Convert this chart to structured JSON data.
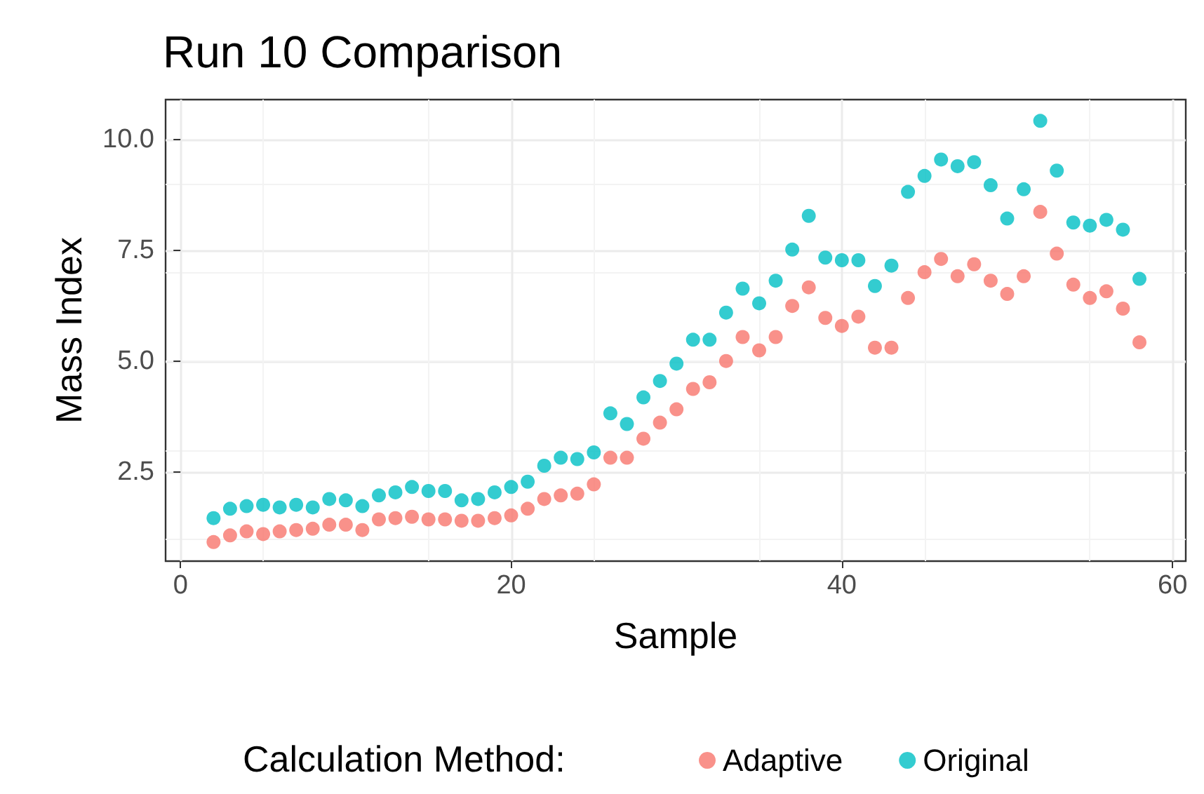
{
  "chart_data": {
    "type": "scatter",
    "title": "Run 10 Comparison",
    "xlabel": "Sample",
    "ylabel": "Mass Index",
    "legend_title": "Calculation Method:",
    "x": [
      2,
      3,
      4,
      5,
      6,
      7,
      8,
      9,
      10,
      11,
      12,
      13,
      14,
      15,
      16,
      17,
      18,
      19,
      20,
      21,
      22,
      23,
      24,
      25,
      26,
      27,
      28,
      29,
      30,
      31,
      32,
      33,
      34,
      35,
      36,
      37,
      38,
      39,
      40,
      41,
      42,
      43,
      44,
      45,
      46,
      47,
      48,
      49,
      50,
      51,
      52,
      53,
      54,
      55,
      56,
      57,
      58
    ],
    "series": [
      {
        "name": "Adaptive",
        "color": "#f8766d",
        "values": [
          0.93,
          1.08,
          1.17,
          1.11,
          1.17,
          1.2,
          1.23,
          1.32,
          1.32,
          1.2,
          1.44,
          1.47,
          1.5,
          1.44,
          1.44,
          1.41,
          1.41,
          1.47,
          1.53,
          1.68,
          1.9,
          1.98,
          2.02,
          2.23,
          2.83,
          2.83,
          3.26,
          3.62,
          3.92,
          4.38,
          4.53,
          5.01,
          5.55,
          5.25,
          5.55,
          6.25,
          6.67,
          5.98,
          5.8,
          6.01,
          5.31,
          5.31,
          6.43,
          7.01,
          7.31,
          6.92,
          7.19,
          6.82,
          6.52,
          6.92,
          8.37,
          7.43,
          6.73,
          6.43,
          6.58,
          6.19,
          5.43
        ]
      },
      {
        "name": "Original",
        "color": "#00bfc4",
        "values": [
          1.47,
          1.68,
          1.74,
          1.77,
          1.71,
          1.77,
          1.71,
          1.9,
          1.87,
          1.74,
          1.98,
          2.05,
          2.17,
          2.08,
          2.08,
          1.87,
          1.9,
          2.05,
          2.17,
          2.29,
          2.65,
          2.83,
          2.8,
          2.95,
          3.83,
          3.59,
          4.19,
          4.56,
          4.95,
          5.49,
          5.49,
          6.1,
          6.64,
          6.31,
          6.82,
          7.52,
          8.28,
          7.34,
          7.28,
          7.28,
          6.7,
          7.16,
          8.82,
          9.18,
          9.55,
          9.4,
          9.49,
          8.97,
          8.22,
          8.88,
          10.42,
          9.3,
          8.13,
          8.06,
          8.19,
          7.97,
          6.86
        ]
      }
    ],
    "xlim": [
      -0.9,
      60.8
    ],
    "xticks": [
      0,
      20,
      40,
      60
    ],
    "ylim": [
      0.5,
      10.9
    ],
    "yticks": [
      {
        "value": 2.5,
        "label": "2.5"
      },
      {
        "value": 5,
        "label": "5.0"
      },
      {
        "value": 7.5,
        "label": "7.5"
      },
      {
        "value": 10,
        "label": "10.0"
      }
    ],
    "grid": true,
    "legend": "bottom",
    "marker": "circle"
  }
}
